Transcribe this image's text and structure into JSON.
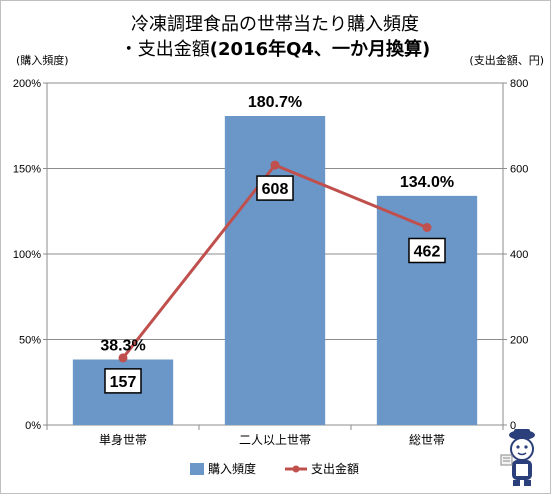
{
  "chart_data": {
    "type": "bar",
    "title_line1": "冷凍調理食品の世帯当たり購入頻度",
    "title_line2_prefix": "・支出金額",
    "title_line2_bold": "(2016年Q4、一か月換算)",
    "left_axis_unit": "(購入頻度)",
    "right_axis_unit": "(支出金額、円)",
    "categories": [
      "単身世帯",
      "二人以上世帯",
      "総世帯"
    ],
    "series": [
      {
        "name": "購入頻度",
        "type": "bar",
        "axis": "left",
        "values": [
          38.3,
          180.7,
          134.0
        ],
        "labels": [
          "38.3%",
          "180.7%",
          "134.0%"
        ],
        "color": "#6a96c8"
      },
      {
        "name": "支出金額",
        "type": "line",
        "axis": "right",
        "values": [
          157,
          608,
          462
        ],
        "labels": [
          "157",
          "608",
          "462"
        ],
        "color": "#c0504d"
      }
    ],
    "left_axis": {
      "ylim": [
        0,
        200
      ],
      "ticks": [
        0,
        50,
        100,
        150,
        200
      ],
      "tick_labels": [
        "0%",
        "50%",
        "100%",
        "150%",
        "200%"
      ]
    },
    "right_axis": {
      "ylim": [
        0,
        800
      ],
      "ticks": [
        0,
        200,
        400,
        600,
        800
      ],
      "tick_labels": [
        "0",
        "200",
        "400",
        "600",
        "800"
      ]
    },
    "grid": true,
    "legend_placement": "bottom"
  },
  "mascot": {
    "icon": "mascot-character-icon"
  }
}
